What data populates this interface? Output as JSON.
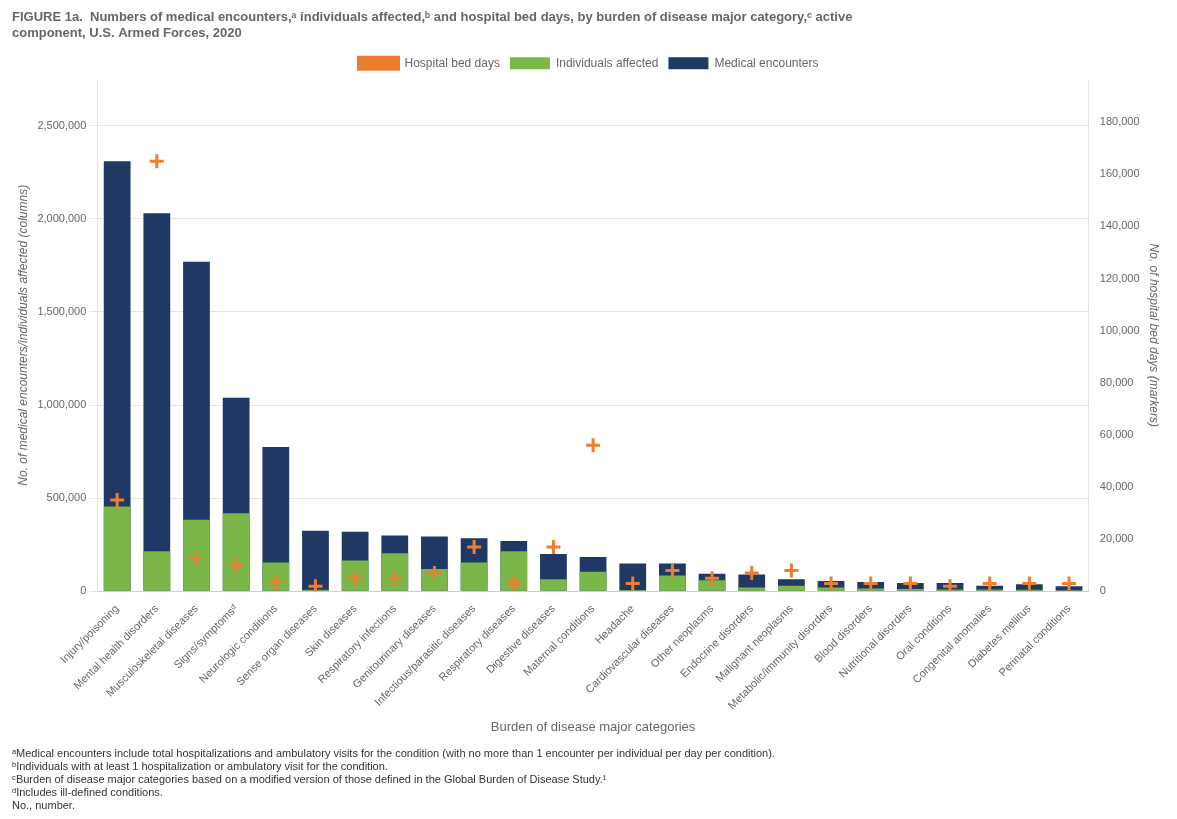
{
  "chart_data": {
    "type": "bar",
    "title": [
      "FIGURE 1a.  Numbers of medical encounters,ᵃ individuals affected,ᵇ and hospital bed days, by burden of disease major category,ᶜ active",
      "component, U.S. Armed Forces, 2020"
    ],
    "annotations": [
      "ᵃMedical encounters include total hospitalizations and ambulatory visits for the condition (with no more than 1 encounter per individual per day per condition).",
      "ᵇIndividuals with at least 1 hospitalization or ambulatory visit for the condition.",
      "ᶜBurden of disease major categories based on a modified version of those defined in the Global Burden of Disease Study.¹",
      "ᵈIncludes ill-defined conditions.",
      "No., number."
    ],
    "xlabel": "Burden of disease major categories",
    "ylabel": "No. of medical encounters/individuals affected (columns)",
    "y2label": "No. of hospital bed days (markers)",
    "categories": [
      "Injury/poisoning",
      "Mental health disorders",
      "Musculoskeletal diseases",
      "Signs/symptomsᵈ",
      "Neurologic conditions",
      "Sense organ diseases",
      "Skin diseases",
      "Respiratory infections",
      "Genitourinary diseases",
      "Infectious/parasitic diseases",
      "Respiratory diseases",
      "Digestive diseases",
      "Maternal conditions",
      "Headache",
      "Cardiovascular diseases",
      "Other neoplasms",
      "Endocrine disorders",
      "Malignant neoplasms",
      "Metabolic/immunity disorders",
      "Blood disorders",
      "Nutritional disorders",
      "Oral conditions",
      "Congenital anomalies",
      "Diabetes mellitus",
      "Perinatal conditions"
    ],
    "series": [
      {
        "name": "Medical encounters",
        "color": "#1f3864",
        "values": [
          2310000,
          2030000,
          1770000,
          1040000,
          775000,
          325000,
          320000,
          300000,
          295000,
          285000,
          270000,
          200000,
          185000,
          150000,
          150000,
          95000,
          90000,
          65000,
          55000,
          50000,
          45000,
          45000,
          30000,
          38000,
          27000
        ]
      },
      {
        "name": "Individuals affected",
        "color": "#7ab648",
        "values": [
          455000,
          215000,
          385000,
          420000,
          155000,
          8000,
          165000,
          205000,
          120000,
          155000,
          215000,
          65000,
          105000,
          7000,
          85000,
          60000,
          20000,
          30000,
          20000,
          15000,
          12000,
          10000,
          10000,
          8000,
          5000
        ]
      },
      {
        "name": "Hospital bed days",
        "type": "scatter",
        "marker": "plus",
        "color": "#ed7d31",
        "axis": "y2",
        "values": [
          35000,
          165000,
          12500,
          10000,
          3500,
          2000,
          5000,
          5000,
          7000,
          17000,
          3000,
          17000,
          56000,
          3000,
          8000,
          5000,
          7000,
          8000,
          3000,
          3000,
          3000,
          2000,
          3000,
          3000,
          3000
        ]
      }
    ],
    "ylim": [
      0,
      2750000
    ],
    "yticks": [
      0,
      {
        "value": 500000,
        "label": "500,000"
      },
      {
        "value": 1000000,
        "label": "1,000,000"
      },
      {
        "value": 1500000,
        "label": "1,500,000"
      },
      {
        "value": 2000000,
        "label": "2,000,000"
      },
      {
        "value": 2500000,
        "label": "2,500,000"
      }
    ],
    "y2lim": [
      0,
      196429
    ],
    "y2ticks": [
      0,
      {
        "value": 20000,
        "label": "20,000"
      },
      {
        "value": 40000,
        "label": "40,000"
      },
      {
        "value": 60000,
        "label": "60,000"
      },
      {
        "value": 80000,
        "label": "80,000"
      },
      {
        "value": 100000,
        "label": "100,000"
      },
      {
        "value": 120000,
        "label": "120,000"
      },
      {
        "value": 140000,
        "label": "140,000"
      },
      {
        "value": 160000,
        "label": "160,000"
      },
      {
        "value": 180000,
        "label": "180,000"
      }
    ],
    "grid": true,
    "legend": "top"
  }
}
